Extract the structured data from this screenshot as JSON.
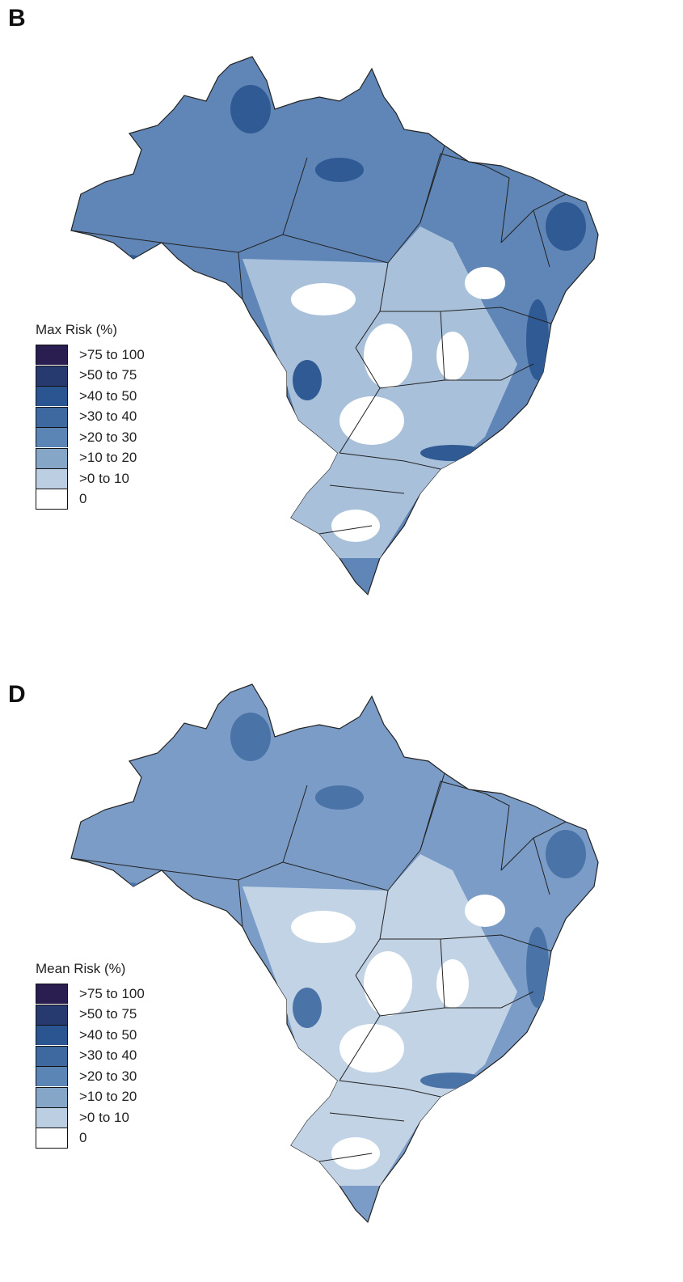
{
  "panels": [
    {
      "label": "B",
      "legend_title": "Max Risk (%)",
      "base_fill": "#5f86b6",
      "light_fill": "#a9c0db"
    },
    {
      "label": "D",
      "legend_title": "Mean Risk (%)",
      "base_fill": "#7a9cc6",
      "light_fill": "#c2d3e6"
    }
  ],
  "legend_classes": [
    {
      "label": ">75 to 100",
      "color": "#2a1d4f"
    },
    {
      "label": ">50 to 75",
      "color": "#263a70"
    },
    {
      "label": ">40 to 50",
      "color": "#2a5590"
    },
    {
      "label": ">30 to 40",
      "color": "#3d68a0"
    },
    {
      "label": ">20 to 30",
      "color": "#5a85b5"
    },
    {
      "label": ">10 to 20",
      "color": "#86a6c8"
    },
    {
      "label": ">0 to 10",
      "color": "#bccfe2"
    },
    {
      "label": "0",
      "color": "#ffffff"
    }
  ]
}
